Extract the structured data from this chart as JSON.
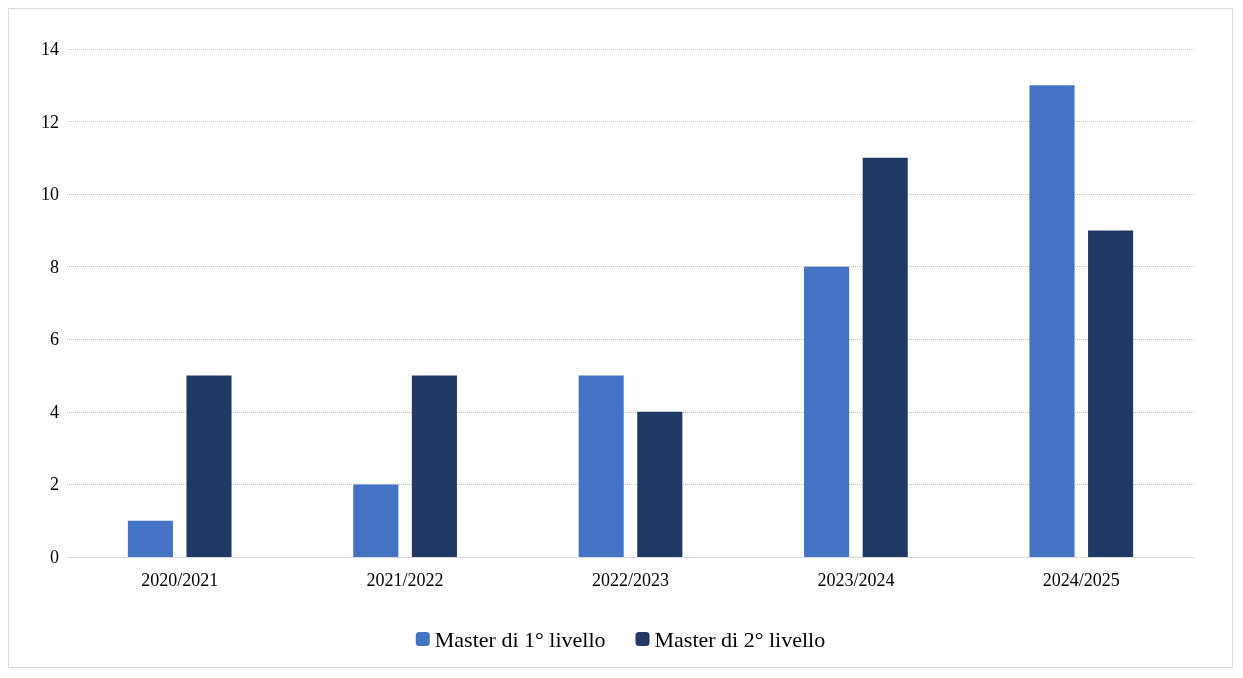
{
  "chart_data": {
    "type": "bar",
    "categories": [
      "2020/2021",
      "2021/2022",
      "2022/2023",
      "2023/2024",
      "2024/2025"
    ],
    "series": [
      {
        "name": "Master di 1° livello",
        "color": "#4472c4",
        "values": [
          1,
          2,
          5,
          8,
          13
        ]
      },
      {
        "name": "Master di 2° livello",
        "color": "#203864",
        "values": [
          5,
          5,
          4,
          11,
          9
        ]
      }
    ],
    "ylim": [
      0,
      14
    ],
    "yticks": [
      0,
      2,
      4,
      6,
      8,
      10,
      12,
      14
    ],
    "grid": "y",
    "legend": "bottom"
  }
}
